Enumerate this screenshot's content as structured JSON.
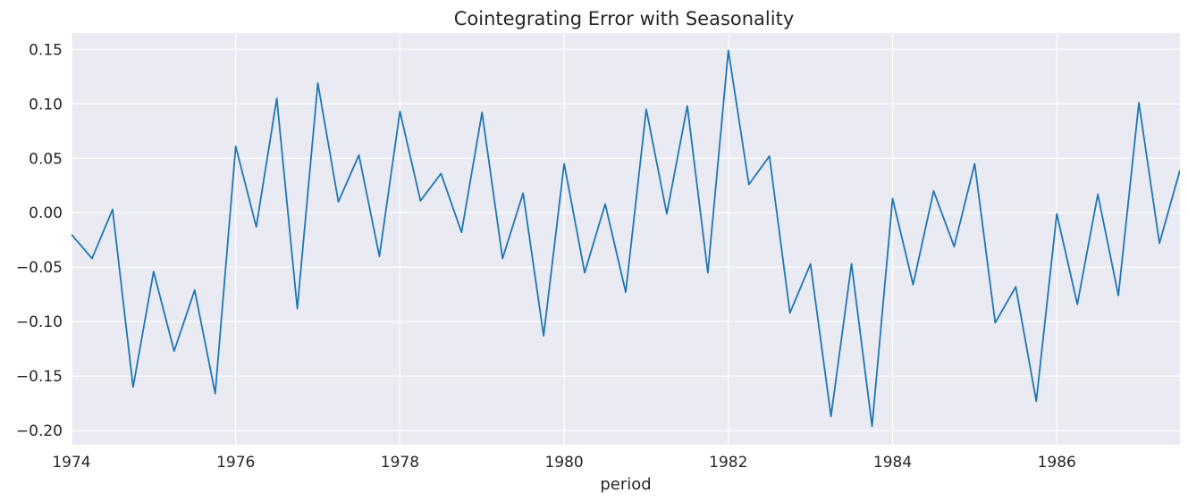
{
  "chart_data": {
    "type": "line",
    "title": "Cointegrating Error with Seasonality",
    "xlabel": "period",
    "ylabel": "",
    "xlim": [
      1974,
      1987.5
    ],
    "ylim": [
      -0.213,
      0.165
    ],
    "xticks": [
      1974,
      1976,
      1978,
      1980,
      1982,
      1984,
      1986
    ],
    "xtick_labels": [
      "1974",
      "1976",
      "1978",
      "1980",
      "1982",
      "1984",
      "1986"
    ],
    "yticks": [
      0.15,
      0.1,
      0.05,
      0.0,
      -0.05,
      -0.1,
      -0.15,
      -0.2
    ],
    "ytick_labels": [
      "0.15",
      "0.10",
      "0.05",
      "0.00",
      "−0.05",
      "−0.10",
      "−0.15",
      "−0.20"
    ],
    "grid": true,
    "series": [
      {
        "color": "#1f77b4",
        "x": [
          1974.0,
          1974.25,
          1974.5,
          1974.75,
          1975.0,
          1975.25,
          1975.5,
          1975.75,
          1976.0,
          1976.25,
          1976.5,
          1976.75,
          1977.0,
          1977.25,
          1977.5,
          1977.75,
          1978.0,
          1978.25,
          1978.5,
          1978.75,
          1979.0,
          1979.25,
          1979.5,
          1979.75,
          1980.0,
          1980.25,
          1980.5,
          1980.75,
          1981.0,
          1981.25,
          1981.5,
          1981.75,
          1982.0,
          1982.25,
          1982.5,
          1982.75,
          1983.0,
          1983.25,
          1983.5,
          1983.75,
          1984.0,
          1984.25,
          1984.5,
          1984.75,
          1985.0,
          1985.25,
          1985.5,
          1985.75,
          1986.0,
          1986.25,
          1986.5,
          1986.75,
          1987.0,
          1987.25,
          1987.5
        ],
        "y": [
          -0.02,
          -0.042,
          0.003,
          -0.16,
          -0.054,
          -0.127,
          -0.071,
          -0.166,
          0.061,
          -0.013,
          0.105,
          -0.088,
          0.119,
          0.01,
          0.053,
          -0.04,
          0.093,
          0.011,
          0.036,
          -0.018,
          0.092,
          -0.042,
          0.018,
          -0.113,
          0.045,
          -0.055,
          0.008,
          -0.073,
          0.095,
          -0.001,
          0.098,
          -0.055,
          0.149,
          0.026,
          0.052,
          -0.092,
          -0.047,
          -0.187,
          -0.047,
          -0.196,
          0.013,
          -0.066,
          0.02,
          -0.031,
          0.045,
          -0.101,
          -0.068,
          -0.173,
          -0.001,
          -0.084,
          0.017,
          -0.076,
          0.101,
          -0.028,
          0.039
        ]
      }
    ]
  }
}
